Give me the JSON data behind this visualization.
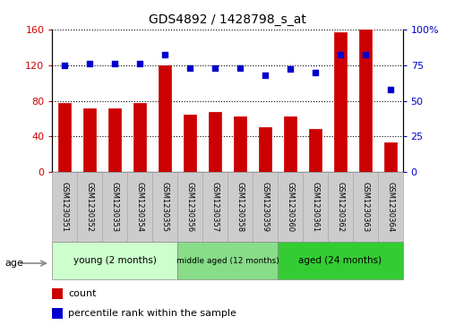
{
  "title": "GDS4892 / 1428798_s_at",
  "samples": [
    "GSM1230351",
    "GSM1230352",
    "GSM1230353",
    "GSM1230354",
    "GSM1230355",
    "GSM1230356",
    "GSM1230357",
    "GSM1230358",
    "GSM1230359",
    "GSM1230360",
    "GSM1230361",
    "GSM1230362",
    "GSM1230363",
    "GSM1230364"
  ],
  "count_values": [
    78,
    72,
    72,
    78,
    120,
    65,
    68,
    62,
    50,
    62,
    48,
    157,
    160,
    33
  ],
  "percentile_values": [
    75,
    76,
    76,
    76,
    82,
    73,
    73,
    73,
    68,
    72,
    70,
    82,
    82,
    58
  ],
  "groups": [
    {
      "label": "young (2 months)",
      "start": 0,
      "end": 5,
      "color_face": "#ccffcc",
      "color_edge": "#888888"
    },
    {
      "label": "middle aged (12 months)",
      "start": 5,
      "end": 9,
      "color_face": "#88dd88",
      "color_edge": "#888888"
    },
    {
      "label": "aged (24 months)",
      "start": 9,
      "end": 14,
      "color_face": "#33cc33",
      "color_edge": "#888888"
    }
  ],
  "count_color": "#cc0000",
  "percentile_color": "#0000cc",
  "ylim_left": [
    0,
    160
  ],
  "ylim_right": [
    0,
    100
  ],
  "yticks_left": [
    0,
    40,
    80,
    120,
    160
  ],
  "yticks_right": [
    0,
    25,
    50,
    75,
    100
  ],
  "bar_width": 0.5,
  "tick_area_color": "#cccccc",
  "tick_area_border": "#aaaaaa",
  "bg_color": "#ffffff"
}
